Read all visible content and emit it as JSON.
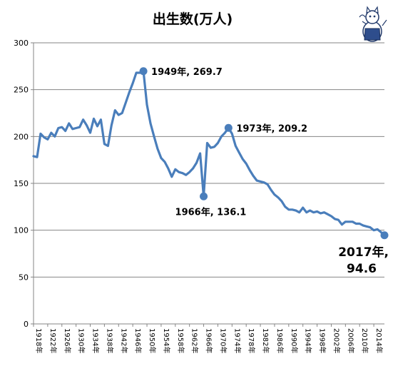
{
  "chart_data": {
    "type": "line",
    "title": "出生数(万人)",
    "xlabel": "",
    "ylabel": "",
    "ylim": [
      0,
      300
    ],
    "yticks": [
      0,
      50,
      100,
      150,
      200,
      250,
      300
    ],
    "grid": "horizontal",
    "legend": "none",
    "line_color": "#4a7ebb",
    "xtick_labels": [
      "1918年",
      "1922年",
      "1926年",
      "1930年",
      "1934年",
      "1938年",
      "1942年",
      "1946年",
      "1950年",
      "1954年",
      "1958年",
      "1962年",
      "1966年",
      "1970年",
      "1974年",
      "1978年",
      "1982年",
      "1986年",
      "1990年",
      "1994年",
      "1998年",
      "2002年",
      "2006年",
      "2010年",
      "2014年"
    ],
    "x": [
      1918,
      1919,
      1920,
      1921,
      1922,
      1923,
      1924,
      1925,
      1926,
      1927,
      1928,
      1929,
      1930,
      1931,
      1932,
      1933,
      1934,
      1935,
      1936,
      1937,
      1938,
      1939,
      1940,
      1941,
      1942,
      1943,
      1944,
      1945,
      1946,
      1947,
      1948,
      1949,
      1950,
      1951,
      1952,
      1953,
      1954,
      1955,
      1956,
      1957,
      1958,
      1959,
      1960,
      1961,
      1962,
      1963,
      1964,
      1965,
      1966,
      1967,
      1968,
      1969,
      1970,
      1971,
      1972,
      1973,
      1974,
      1975,
      1976,
      1977,
      1978,
      1979,
      1980,
      1981,
      1982,
      1983,
      1984,
      1985,
      1986,
      1987,
      1988,
      1989,
      1990,
      1991,
      1992,
      1993,
      1994,
      1995,
      1996,
      1997,
      1998,
      1999,
      2000,
      2001,
      2002,
      2003,
      2004,
      2005,
      2006,
      2007,
      2008,
      2009,
      2010,
      2011,
      2012,
      2013,
      2014,
      2015,
      2016,
      2017
    ],
    "values": [
      179,
      178,
      203,
      199,
      197,
      204,
      200,
      209,
      210,
      206,
      214,
      208,
      209,
      210,
      218,
      212,
      204,
      219,
      211,
      218,
      192,
      190,
      212,
      228,
      223,
      225,
      236,
      247,
      257,
      268,
      268,
      269.7,
      234,
      214,
      200,
      187,
      177,
      173,
      166,
      157,
      165,
      162,
      161,
      159,
      162,
      166,
      172,
      182,
      136.1,
      193,
      188,
      189,
      193,
      200,
      204,
      209.2,
      203,
      190,
      183,
      176,
      171,
      164,
      158,
      153,
      152,
      151,
      149,
      143,
      138,
      135,
      131,
      125,
      122,
      122,
      121,
      119,
      124,
      119,
      121,
      119,
      120,
      118,
      119,
      117,
      115,
      112,
      111,
      106,
      109,
      109,
      109,
      107,
      107,
      105,
      104,
      103,
      100,
      101,
      98,
      94.6
    ],
    "annotations": [
      {
        "label": "1949年, 269.7",
        "x": 1949,
        "y": 269.7,
        "style": "normal"
      },
      {
        "label": "1966年, 136.1",
        "x": 1966,
        "y": 136.1,
        "style": "normal"
      },
      {
        "label": "1973年, 209.2",
        "x": 1973,
        "y": 209.2,
        "style": "normal"
      },
      {
        "label": "2017年,",
        "label2": "94.6",
        "x": 2017,
        "y": 94.6,
        "style": "big"
      }
    ]
  },
  "mascot": {
    "icon": "cat-mascot-icon"
  }
}
